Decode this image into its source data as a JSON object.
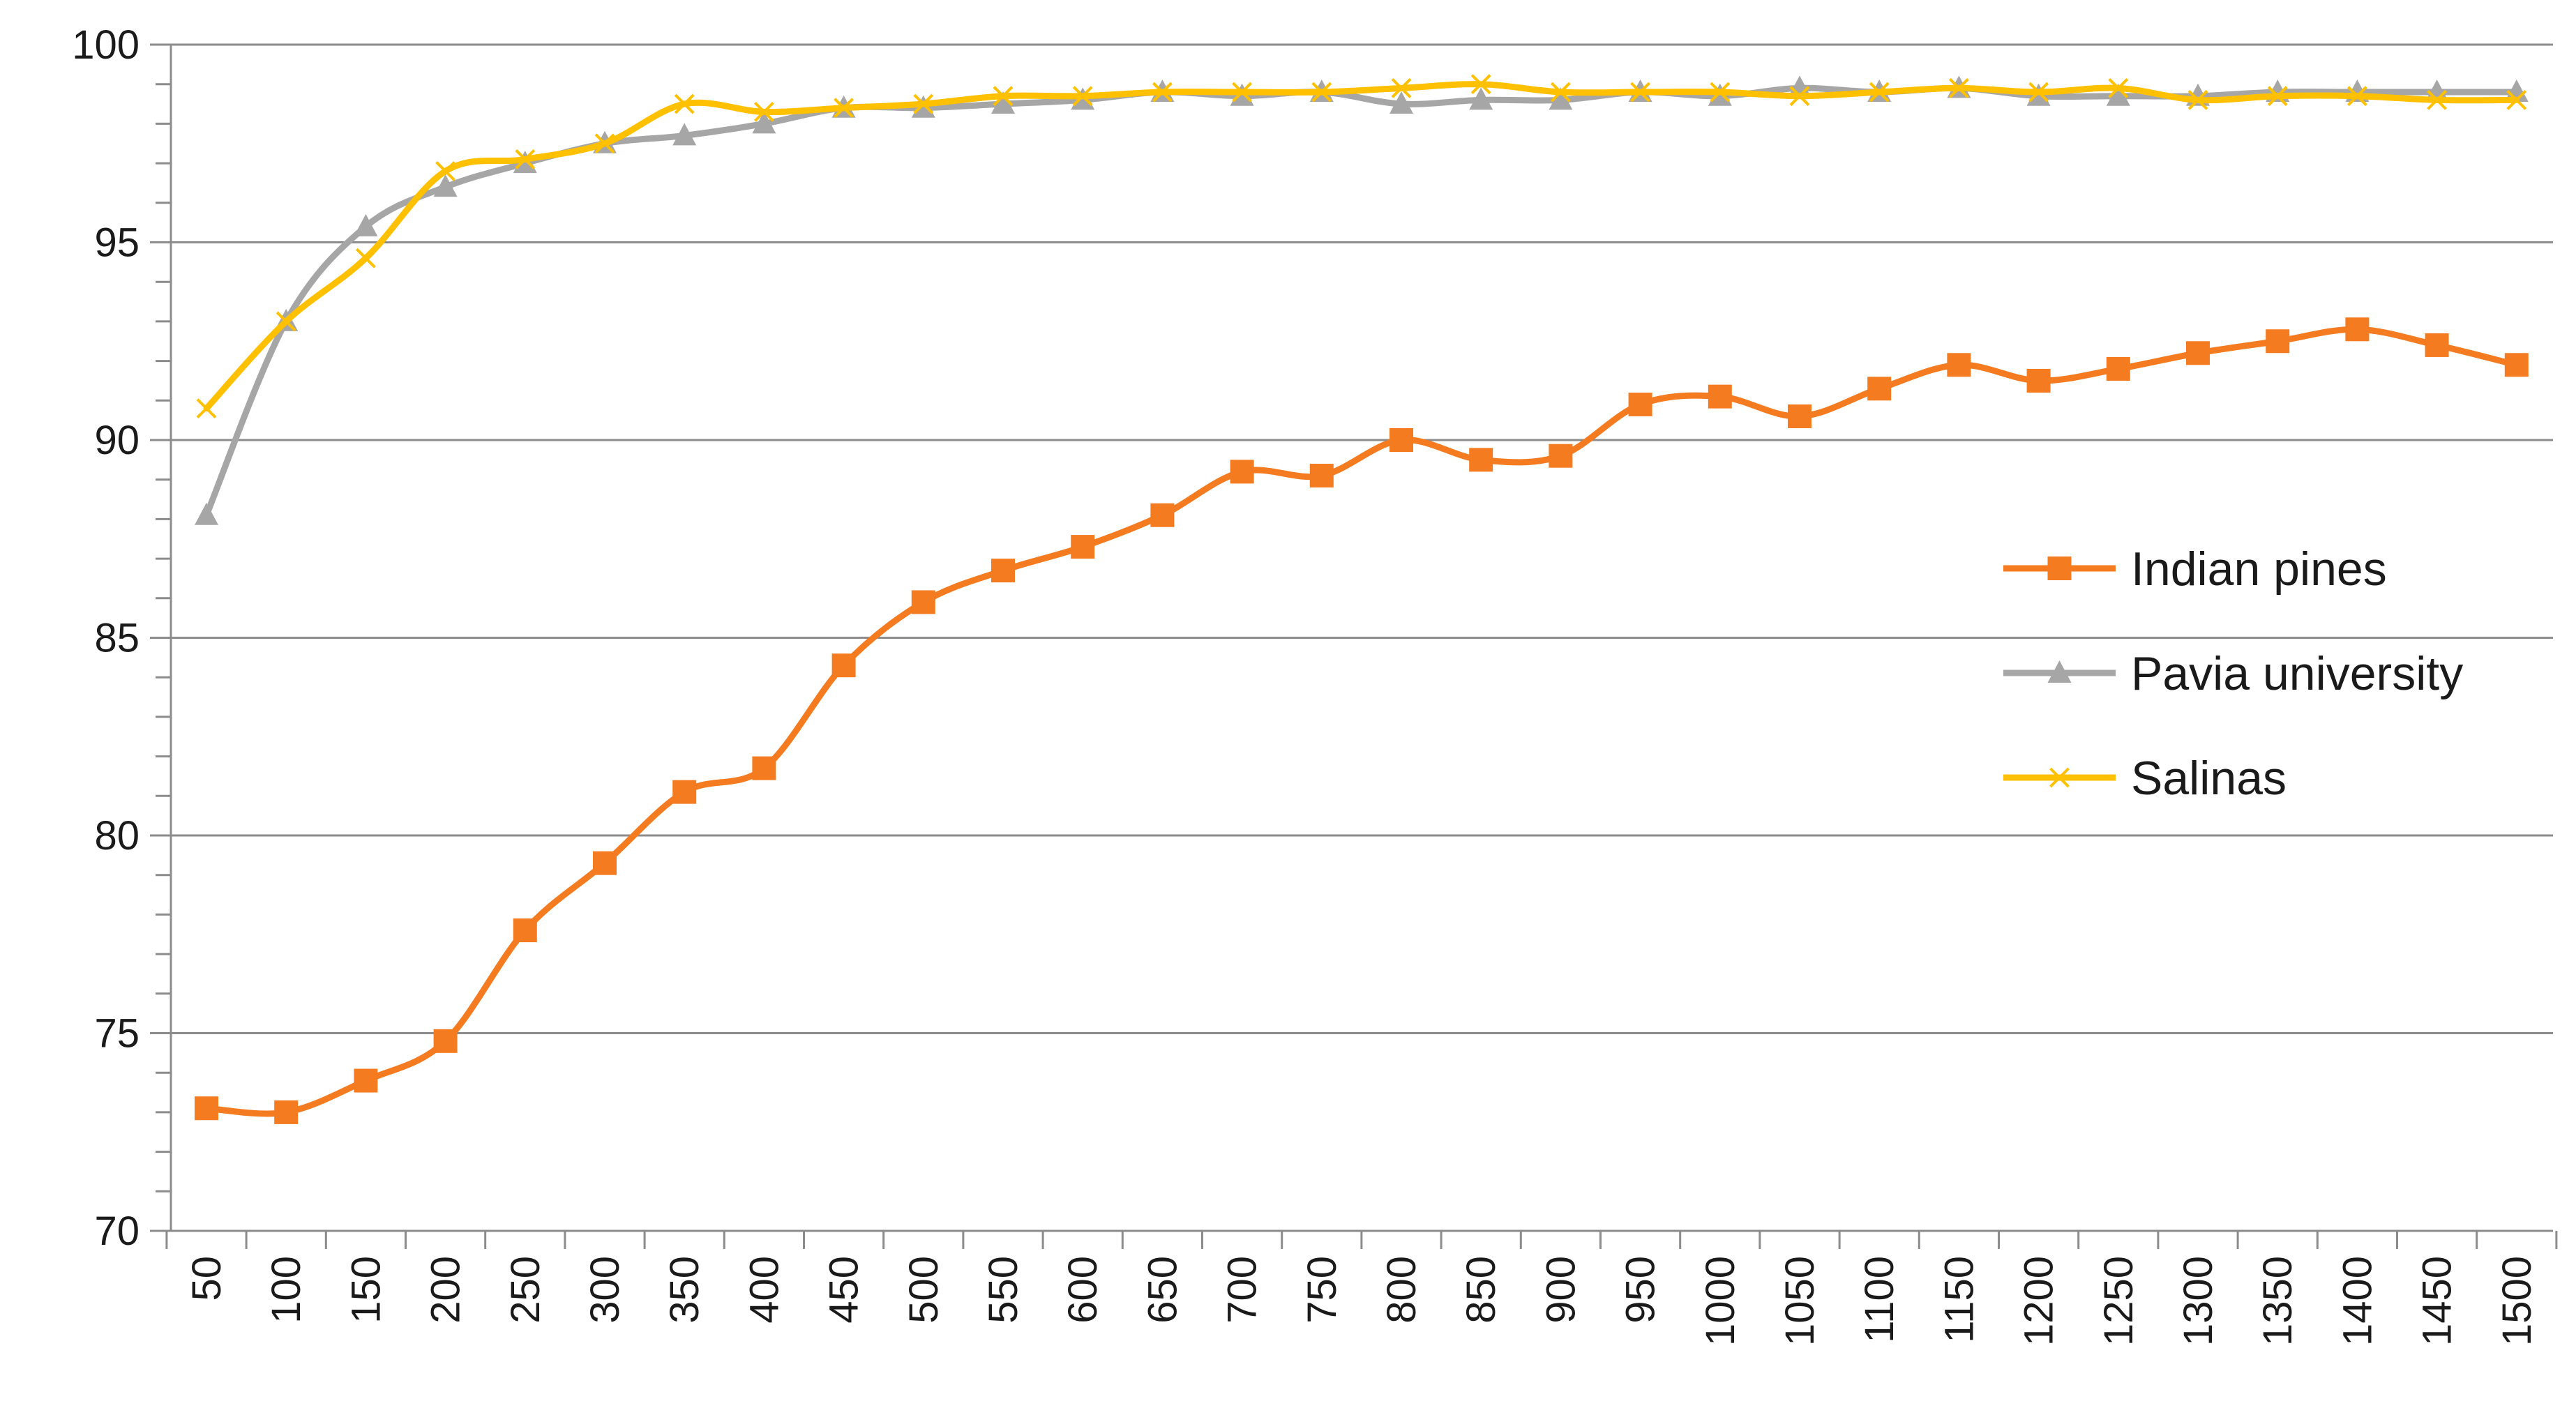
{
  "chart_data": {
    "type": "line",
    "title": "",
    "xlabel": "",
    "ylabel": "",
    "ylim": [
      70,
      100
    ],
    "y_ticks": [
      70,
      75,
      80,
      85,
      90,
      95,
      100
    ],
    "y_minor_step": 1,
    "grid": "horizontal major",
    "legend_position": "right",
    "x": [
      50,
      100,
      150,
      200,
      250,
      300,
      350,
      400,
      450,
      500,
      550,
      600,
      650,
      700,
      750,
      800,
      850,
      900,
      950,
      1000,
      1050,
      1100,
      1150,
      1200,
      1250,
      1300,
      1350,
      1400,
      1450,
      1500
    ],
    "series": [
      {
        "name": "Indian pines",
        "color": "#f47b20",
        "marker": "square",
        "values": [
          73.1,
          73.0,
          73.8,
          74.8,
          77.6,
          79.3,
          81.1,
          81.7,
          84.3,
          85.9,
          86.7,
          87.3,
          88.1,
          89.2,
          89.1,
          90.0,
          89.5,
          89.6,
          90.9,
          91.1,
          90.6,
          91.3,
          91.9,
          91.5,
          91.8,
          92.2,
          92.5,
          92.8,
          92.4,
          91.9
        ]
      },
      {
        "name": "Pavia university",
        "color": "#a6a6a6",
        "marker": "triangle",
        "values": [
          88.1,
          93.0,
          95.4,
          96.4,
          97.0,
          97.5,
          97.7,
          98.0,
          98.4,
          98.4,
          98.5,
          98.6,
          98.8,
          98.7,
          98.8,
          98.5,
          98.6,
          98.6,
          98.8,
          98.7,
          98.9,
          98.8,
          98.9,
          98.7,
          98.7,
          98.7,
          98.8,
          98.8,
          98.8,
          98.8
        ]
      },
      {
        "name": "Salinas",
        "color": "#ffc000",
        "marker": "x",
        "values": [
          90.8,
          93.0,
          94.6,
          96.8,
          97.1,
          97.5,
          98.5,
          98.3,
          98.4,
          98.5,
          98.7,
          98.7,
          98.8,
          98.8,
          98.8,
          98.9,
          99.0,
          98.8,
          98.8,
          98.8,
          98.7,
          98.8,
          98.9,
          98.8,
          98.9,
          98.6,
          98.7,
          98.7,
          98.6,
          98.6
        ]
      }
    ]
  }
}
